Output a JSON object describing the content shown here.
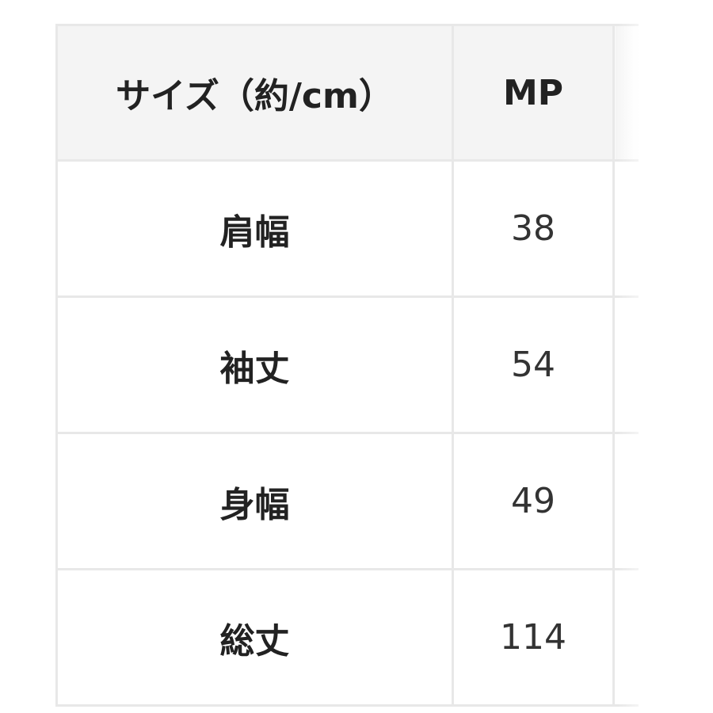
{
  "table": {
    "headers": [
      "サイズ（約/cm）",
      "MP"
    ],
    "rows": [
      {
        "label": "肩幅",
        "value": "38"
      },
      {
        "label": "袖丈",
        "value": "54"
      },
      {
        "label": "身幅",
        "value": "49"
      },
      {
        "label": "総丈",
        "value": "114"
      }
    ]
  }
}
